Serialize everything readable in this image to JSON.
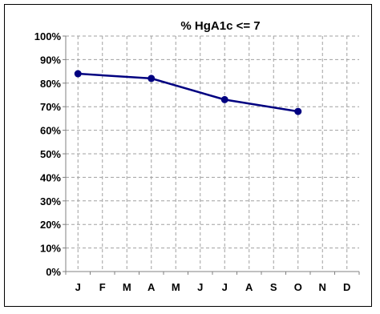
{
  "chart_data": {
    "type": "line",
    "title": "%  HgA1c <= 7",
    "xlabel": "",
    "ylabel": "",
    "categories": [
      "J",
      "F",
      "M",
      "A",
      "M",
      "J",
      "J",
      "A",
      "S",
      "O",
      "N",
      "D"
    ],
    "y_ticks": [
      "0%",
      "10%",
      "20%",
      "30%",
      "40%",
      "50%",
      "60%",
      "70%",
      "80%",
      "90%",
      "100%"
    ],
    "ylim": [
      0,
      100
    ],
    "grid": true,
    "legend": "none",
    "series": [
      {
        "values": [
          84,
          null,
          null,
          82,
          null,
          null,
          73,
          null,
          null,
          68,
          null,
          null
        ],
        "color": "#000080"
      }
    ]
  }
}
